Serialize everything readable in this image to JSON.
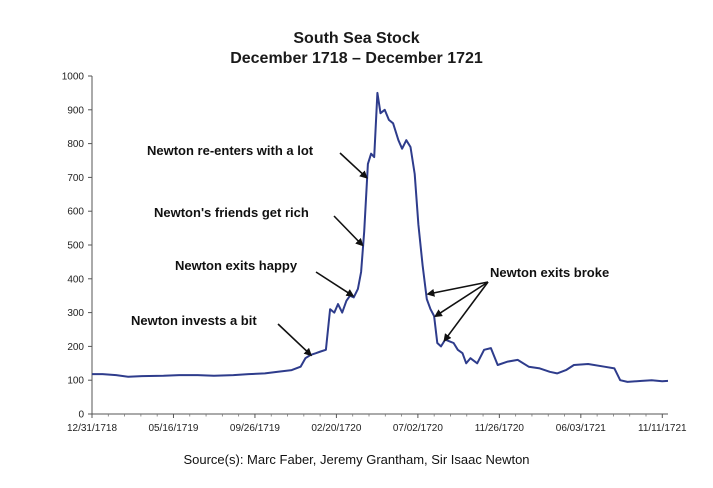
{
  "chart_data": {
    "type": "line",
    "title": "South Sea Stock",
    "subtitle": "December 1718 – December 1721",
    "xlabel": "",
    "ylabel": "",
    "ylim": [
      0,
      1000
    ],
    "yticks": [
      "0",
      "100",
      "200",
      "300",
      "400",
      "500",
      "600",
      "700",
      "800",
      "900",
      "1000"
    ],
    "xticks": [
      "12/31/1718",
      "05/16/1719",
      "09/26/1719",
      "02/20/1720",
      "07/02/1720",
      "11/26/1720",
      "06/03/1721",
      "11/11/1721"
    ],
    "grid": false,
    "series": [
      {
        "color": "#2e3c8c",
        "points": [
          [
            "1718-12-31",
            118
          ],
          [
            "1719-01-20",
            118
          ],
          [
            "1719-02-15",
            115
          ],
          [
            "1719-03-10",
            110
          ],
          [
            "1719-04-05",
            112
          ],
          [
            "1719-05-16",
            113
          ],
          [
            "1719-06-15",
            115
          ],
          [
            "1719-07-20",
            115
          ],
          [
            "1719-08-20",
            113
          ],
          [
            "1719-09-26",
            115
          ],
          [
            "1719-10-25",
            118
          ],
          [
            "1719-11-25",
            120
          ],
          [
            "1719-12-20",
            125
          ],
          [
            "1720-01-15",
            130
          ],
          [
            "1720-02-01",
            140
          ],
          [
            "1720-02-10",
            165
          ],
          [
            "1720-02-20",
            175
          ],
          [
            "1720-03-01",
            180
          ],
          [
            "1720-03-10",
            185
          ],
          [
            "1720-03-20",
            190
          ],
          [
            "1720-03-28",
            310
          ],
          [
            "1720-04-05",
            300
          ],
          [
            "1720-04-12",
            325
          ],
          [
            "1720-04-20",
            300
          ],
          [
            "1720-04-28",
            335
          ],
          [
            "1720-05-05",
            350
          ],
          [
            "1720-05-12",
            345
          ],
          [
            "1720-05-20",
            370
          ],
          [
            "1720-05-26",
            420
          ],
          [
            "1720-06-01",
            540
          ],
          [
            "1720-06-08",
            740
          ],
          [
            "1720-06-14",
            770
          ],
          [
            "1720-06-20",
            760
          ],
          [
            "1720-06-26",
            950
          ],
          [
            "1720-07-02",
            890
          ],
          [
            "1720-07-10",
            900
          ],
          [
            "1720-07-18",
            870
          ],
          [
            "1720-07-26",
            860
          ],
          [
            "1720-08-05",
            810
          ],
          [
            "1720-08-12",
            785
          ],
          [
            "1720-08-20",
            810
          ],
          [
            "1720-08-28",
            790
          ],
          [
            "1720-09-05",
            710
          ],
          [
            "1720-09-12",
            560
          ],
          [
            "1720-09-20",
            440
          ],
          [
            "1720-09-28",
            340
          ],
          [
            "1720-10-05",
            310
          ],
          [
            "1720-10-12",
            290
          ],
          [
            "1720-10-18",
            210
          ],
          [
            "1720-10-25",
            200
          ],
          [
            "1720-11-02",
            220
          ],
          [
            "1720-11-10",
            215
          ],
          [
            "1720-11-18",
            210
          ],
          [
            "1720-11-26",
            190
          ],
          [
            "1720-12-05",
            180
          ],
          [
            "1720-12-12",
            150
          ],
          [
            "1720-12-20",
            165
          ],
          [
            "1721-01-02",
            150
          ],
          [
            "1721-01-15",
            190
          ],
          [
            "1721-01-28",
            195
          ],
          [
            "1721-02-10",
            145
          ],
          [
            "1721-03-01",
            155
          ],
          [
            "1721-03-20",
            160
          ],
          [
            "1721-04-10",
            140
          ],
          [
            "1721-05-01",
            135
          ],
          [
            "1721-05-20",
            125
          ],
          [
            "1721-06-03",
            120
          ],
          [
            "1721-06-20",
            130
          ],
          [
            "1721-07-05",
            145
          ],
          [
            "1721-08-01",
            148
          ],
          [
            "1721-09-01",
            140
          ],
          [
            "1721-09-20",
            135
          ],
          [
            "1721-10-01",
            100
          ],
          [
            "1721-10-15",
            95
          ],
          [
            "1721-11-11",
            98
          ],
          [
            "1721-11-30",
            100
          ],
          [
            "1721-12-20",
            97
          ],
          [
            "1721-12-31",
            98
          ]
        ]
      }
    ],
    "annotations": [
      {
        "text": "Newton re-enters with a lot",
        "target": [
          "1720-06-05",
          700
        ]
      },
      {
        "text": "Newton's friends get rich",
        "target": [
          "1720-05-28",
          500
        ]
      },
      {
        "text": "Newton exits happy",
        "target": [
          "1720-05-10",
          350
        ]
      },
      {
        "text": "Newton invests a bit",
        "target": [
          "1720-02-20",
          175
        ]
      },
      {
        "text": "Newton exits broke",
        "targets": [
          [
            "1720-10-01",
            355
          ],
          [
            "1720-10-15",
            290
          ],
          [
            "1720-11-01",
            218
          ]
        ]
      }
    ]
  },
  "source_text": "Source(s): Marc Faber, Jeremy Grantham, Sir Isaac Newton"
}
